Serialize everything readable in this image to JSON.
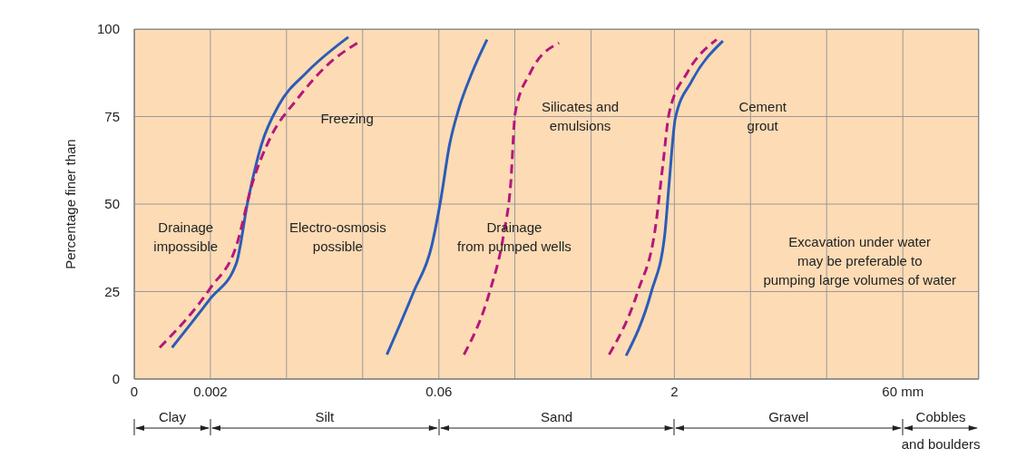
{
  "chart_data": {
    "type": "line",
    "ylabel": "Percentage finer than",
    "xlim": [
      0.000644,
      186
    ],
    "ylim": [
      0,
      100
    ],
    "xticks": [
      {
        "value": 0.000644,
        "label": "0"
      },
      {
        "value": 0.002,
        "label": "0.002"
      },
      {
        "value": 0.00621,
        "label": null
      },
      {
        "value": 0.0193,
        "label": null
      },
      {
        "value": 0.06,
        "label": "0.06"
      },
      {
        "value": 0.186,
        "label": null
      },
      {
        "value": 0.579,
        "label": null
      },
      {
        "value": 2,
        "label": "2"
      },
      {
        "value": 6.21,
        "label": null
      },
      {
        "value": 19.3,
        "label": null
      },
      {
        "value": 60,
        "label": "60 mm"
      }
    ],
    "yticks": [
      0,
      25,
      50,
      75,
      100
    ],
    "log": "x",
    "grid": true,
    "series": [
      {
        "color": "#2b5cb8",
        "line_style": "solid",
        "x": [
          0.00113,
          0.002,
          0.00294,
          0.0035,
          0.00428,
          0.00558,
          0.00834,
          0.0156
        ],
        "values": [
          9,
          23,
          33,
          51,
          67,
          78.5,
          87.5,
          97.7
        ]
      },
      {
        "color": "#b5177a",
        "line_style": "dashed",
        "x": [
          0.00094,
          0.002,
          0.00294,
          0.00374,
          0.00489,
          0.00729,
          0.0116,
          0.0178
        ],
        "values": [
          9,
          26,
          38,
          56,
          69,
          80,
          90,
          96
        ]
      },
      {
        "color": "#2b5cb8",
        "line_style": "solid",
        "x": [
          0.0277,
          0.0413,
          0.0539,
          0.0616,
          0.0704,
          0.0805,
          0.0983,
          0.123
        ],
        "values": [
          7,
          25,
          38,
          51,
          67,
          77,
          87.5,
          97
        ]
      },
      {
        "color": "#b5177a",
        "line_style": "dashed",
        "x": [
          0.0872,
          0.128,
          0.157,
          0.175,
          0.187,
          0.234,
          0.359
        ],
        "values": [
          7,
          25,
          41,
          56,
          76,
          87.5,
          96
        ]
      },
      {
        "color": "#2b5cb8",
        "line_style": "solid",
        "x": [
          0.975,
          1.42,
          1.73,
          1.85,
          2.03,
          2.58,
          4.12
        ],
        "values": [
          6.7,
          25,
          41,
          56,
          74.6,
          85,
          96.6
        ]
      },
      {
        "color": "#b5177a",
        "line_style": "dashed",
        "x": [
          0.757,
          1.16,
          1.51,
          1.69,
          1.85,
          2.42,
          3.75
        ],
        "values": [
          7,
          25,
          43.5,
          61.7,
          76,
          87.5,
          97
        ]
      }
    ],
    "annotations": [
      "Freezing",
      "Drainage\nimpossible",
      "Electro-osmosis\npossible",
      "Silicates and\nemulsions",
      "Drainage\nfrom pumped wells",
      "Cement\ngrout",
      "Excavation under water\nmay be preferable to\npumping large volumes of water",
      "Clay",
      "Silt",
      "Sand",
      "Gravel",
      "Cobbles\nand boulders"
    ]
  }
}
